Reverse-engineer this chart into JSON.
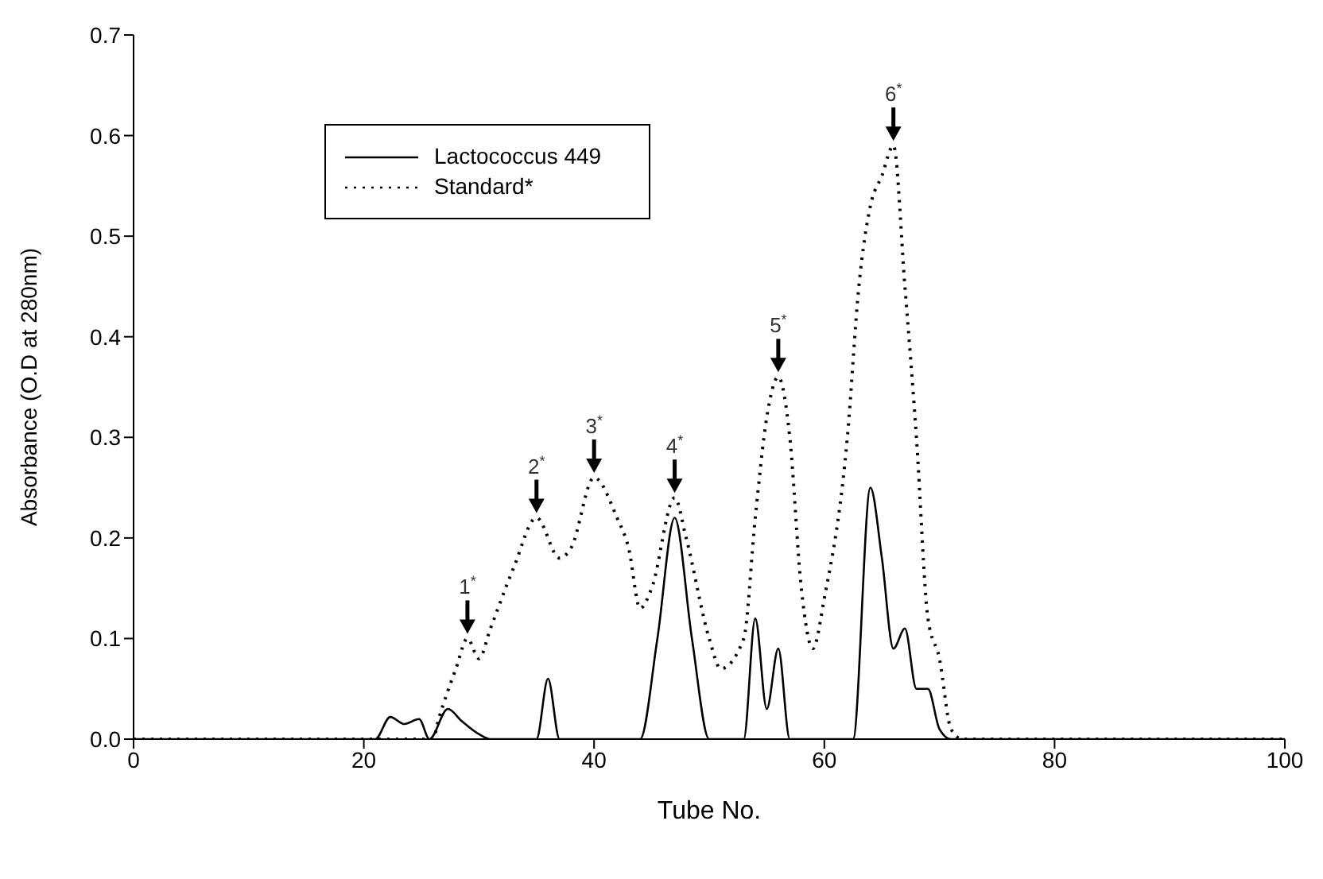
{
  "chart_data": {
    "type": "line",
    "xlabel": "Tube No.",
    "ylabel": "Absorbance (O.D at 280nm)",
    "xlim": [
      0,
      100
    ],
    "xticks": [
      0,
      20,
      40,
      60,
      80,
      100
    ],
    "ylim": [
      0,
      0.7
    ],
    "yticks": [
      {
        "value": 0,
        "label": "0.0"
      },
      0.1,
      0.2,
      0.3,
      0.4,
      0.5,
      0.6,
      0.7
    ],
    "grid": false,
    "legend": "top left",
    "marker": "none",
    "series": [
      {
        "name": "Lactococcus 449",
        "color": "#000000",
        "line_style": "solid",
        "x": [
          0,
          21,
          22.3,
          23.5,
          24.8,
          25.7,
          27.3,
          28.5,
          30,
          31,
          35,
          36,
          37,
          44,
          45.5,
          47,
          48.5,
          50,
          53,
          54,
          55,
          56,
          57,
          62.5,
          64,
          65,
          66,
          67,
          68,
          69,
          70,
          71,
          100
        ],
        "values": [
          0,
          0,
          0.022,
          0.015,
          0.02,
          0,
          0.03,
          0.018,
          0.005,
          0,
          0,
          0.06,
          0,
          0,
          0.1,
          0.22,
          0.1,
          0,
          0,
          0.12,
          0.03,
          0.09,
          0,
          0,
          0.25,
          0.18,
          0.09,
          0.11,
          0.05,
          0.05,
          0.01,
          0,
          0
        ]
      },
      {
        "name": "Standard*",
        "color": "#000000",
        "line_style": "dotted",
        "x": [
          0,
          26,
          26.5,
          28,
          29,
          30,
          31,
          33,
          35,
          37,
          38,
          40,
          42,
          43,
          44,
          45,
          47,
          48,
          50,
          51,
          53,
          54,
          55,
          56,
          57,
          58,
          59,
          60,
          62,
          63,
          64,
          65,
          66,
          67,
          68,
          69,
          70,
          71,
          72,
          100
        ],
        "values": [
          0,
          0,
          0.02,
          0.07,
          0.1,
          0.08,
          0.11,
          0.17,
          0.22,
          0.18,
          0.19,
          0.26,
          0.22,
          0.19,
          0.13,
          0.15,
          0.24,
          0.2,
          0.1,
          0.07,
          0.1,
          0.22,
          0.32,
          0.36,
          0.3,
          0.15,
          0.09,
          0.14,
          0.3,
          0.45,
          0.53,
          0.56,
          0.59,
          0.45,
          0.3,
          0.12,
          0.08,
          0.01,
          0,
          0
        ]
      }
    ],
    "annotations": [
      {
        "text": "1$^{*}$",
        "x": 29,
        "y": 0.1
      },
      {
        "text": "2$^{*}$",
        "x": 35,
        "y": 0.22
      },
      {
        "text": "3$^{*}$",
        "x": 40,
        "y": 0.26
      },
      {
        "text": "4$^{*}$",
        "x": 47,
        "y": 0.24
      },
      {
        "text": "5$^{*}$",
        "x": 56,
        "y": 0.36
      },
      {
        "text": "6$^{*}$",
        "x": 66,
        "y": 0.59
      }
    ]
  }
}
